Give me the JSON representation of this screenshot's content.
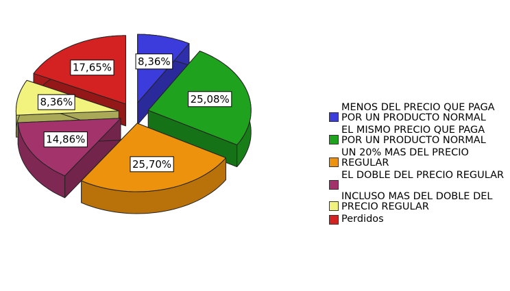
{
  "chart_data": {
    "type": "pie",
    "categories": [
      "MENOS DEL PRECIO QUE PAGA POR UN PRODUCTO NORMAL",
      "EL MISMO PRECIO QUE PAGA POR UN PRODUCTO NORMAL",
      "UN 20% MAS DEL PRECIO REGULAR",
      "EL DOBLE DEL PRECIO REGULAR",
      "INCLUSO MAS DEL DOBLE DEL PRECIO REGULAR",
      "Perdidos"
    ],
    "values": [
      8.36,
      25.08,
      25.7,
      14.86,
      8.36,
      17.65
    ],
    "value_labels": [
      "8,36%",
      "25,08%",
      "25,70%",
      "14,86%",
      "8,36%",
      "17,65%"
    ],
    "colors": [
      "#3c3cdc",
      "#1fa31f",
      "#ec920c",
      "#a3336b",
      "#f2f27e",
      "#d42222"
    ]
  }
}
